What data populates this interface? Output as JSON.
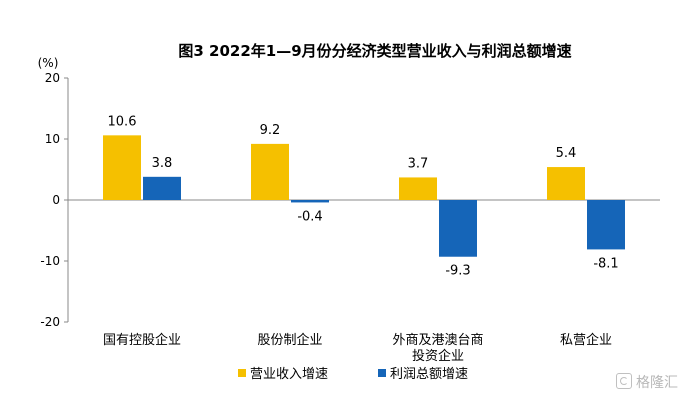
{
  "chart_data": {
    "type": "bar",
    "title": "图3 2022年1—9月份分经济类型营业收入与利润总额增速",
    "ylabel": "(%)",
    "ylim": [
      -20,
      20
    ],
    "yticks": [
      -20,
      -10,
      0,
      10,
      20
    ],
    "categories": [
      "国有控股企业",
      "股份制企业",
      "外商及港澳台商投资企业",
      "私营企业"
    ],
    "category_lines": [
      [
        "国有控股企业"
      ],
      [
        "股份制企业"
      ],
      [
        "外商及港澳台商",
        "投资企业"
      ],
      [
        "私营企业"
      ]
    ],
    "series": [
      {
        "name": "营业收入增速",
        "color": "#f5c000",
        "values": [
          10.6,
          9.2,
          3.7,
          5.4
        ]
      },
      {
        "name": "利润总额增速",
        "color": "#1565b8",
        "values": [
          3.8,
          -0.4,
          -9.3,
          -8.1
        ]
      }
    ],
    "legend": "bottom-center",
    "grid": false
  },
  "watermark": "格隆汇"
}
